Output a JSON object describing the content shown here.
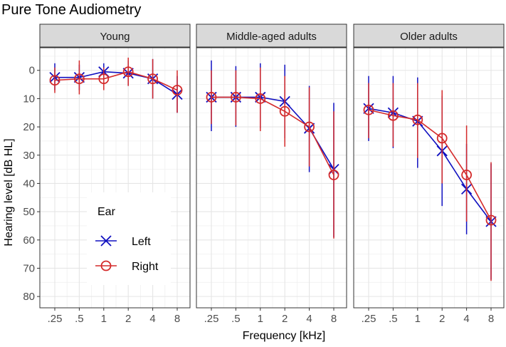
{
  "chart_data": {
    "type": "line",
    "title": "Pure Tone Audiometry",
    "xlabel": "Frequency [kHz]",
    "ylabel": "Hearing level [dB HL]",
    "x_tick_labels": [
      ".25",
      ".5",
      "1",
      "2",
      "4",
      "8"
    ],
    "y_ticks": [
      0,
      10,
      20,
      30,
      40,
      50,
      60,
      70,
      80
    ],
    "ylim": [
      -8,
      84
    ],
    "y_reversed": true,
    "grid": true,
    "legend": {
      "title": "Ear",
      "position": "bottom-left of first panel",
      "entries": [
        {
          "name": "Left",
          "marker": "x",
          "color": "#1010c0"
        },
        {
          "name": "Right",
          "marker": "circle",
          "color": "#d42a2a"
        }
      ]
    },
    "panels": [
      {
        "name": "Young",
        "series": [
          {
            "name": "Left",
            "values": [
              2.5,
              2.5,
              0.5,
              1.0,
              3.0,
              8.5
            ],
            "error_low": [
              -2.5,
              -2.0,
              -2.5,
              -3.5,
              -4.0,
              2.0
            ],
            "error_high": [
              7.0,
              7.0,
              3.5,
              5.5,
              10.0,
              15.0
            ]
          },
          {
            "name": "Right",
            "values": [
              3.5,
              3.0,
              3.0,
              0.5,
              3.0,
              7.0
            ],
            "error_low": [
              -1.0,
              -3.5,
              -1.0,
              -4.5,
              -4.0,
              0.0
            ],
            "error_high": [
              8.0,
              8.5,
              7.0,
              5.5,
              10.0,
              15.0
            ]
          }
        ]
      },
      {
        "name": "Middle-aged adults",
        "series": [
          {
            "name": "Left",
            "values": [
              9.5,
              9.5,
              9.5,
              11.0,
              20.5,
              35.0
            ],
            "error_low": [
              -3.5,
              -1.5,
              -2.5,
              -2.0,
              5.5,
              11.5
            ],
            "error_high": [
              21.5,
              20.0,
              20.5,
              24.0,
              36.0,
              59.0
            ]
          },
          {
            "name": "Right",
            "values": [
              9.5,
              9.5,
              10.0,
              14.5,
              20.0,
              37.0
            ],
            "error_low": [
              0.0,
              0.0,
              -1.0,
              2.0,
              6.0,
              14.5
            ],
            "error_high": [
              19.0,
              19.5,
              21.5,
              27.0,
              34.0,
              59.5
            ]
          }
        ]
      },
      {
        "name": "Older adults",
        "series": [
          {
            "name": "Left",
            "values": [
              13.5,
              15.0,
              18.0,
              28.5,
              42.0,
              53.5
            ],
            "error_low": [
              2.0,
              2.0,
              2.5,
              9.0,
              26.0,
              33.0
            ],
            "error_high": [
              25.0,
              27.5,
              34.5,
              48.0,
              58.0,
              74.0
            ]
          },
          {
            "name": "Right",
            "values": [
              14.0,
              16.0,
              17.5,
              24.0,
              37.0,
              53.0
            ],
            "error_low": [
              4.5,
              4.5,
              4.5,
              7.0,
              19.5,
              32.5
            ],
            "error_high": [
              24.0,
              27.0,
              31.0,
              40.0,
              53.5,
              74.5
            ]
          }
        ]
      }
    ]
  }
}
